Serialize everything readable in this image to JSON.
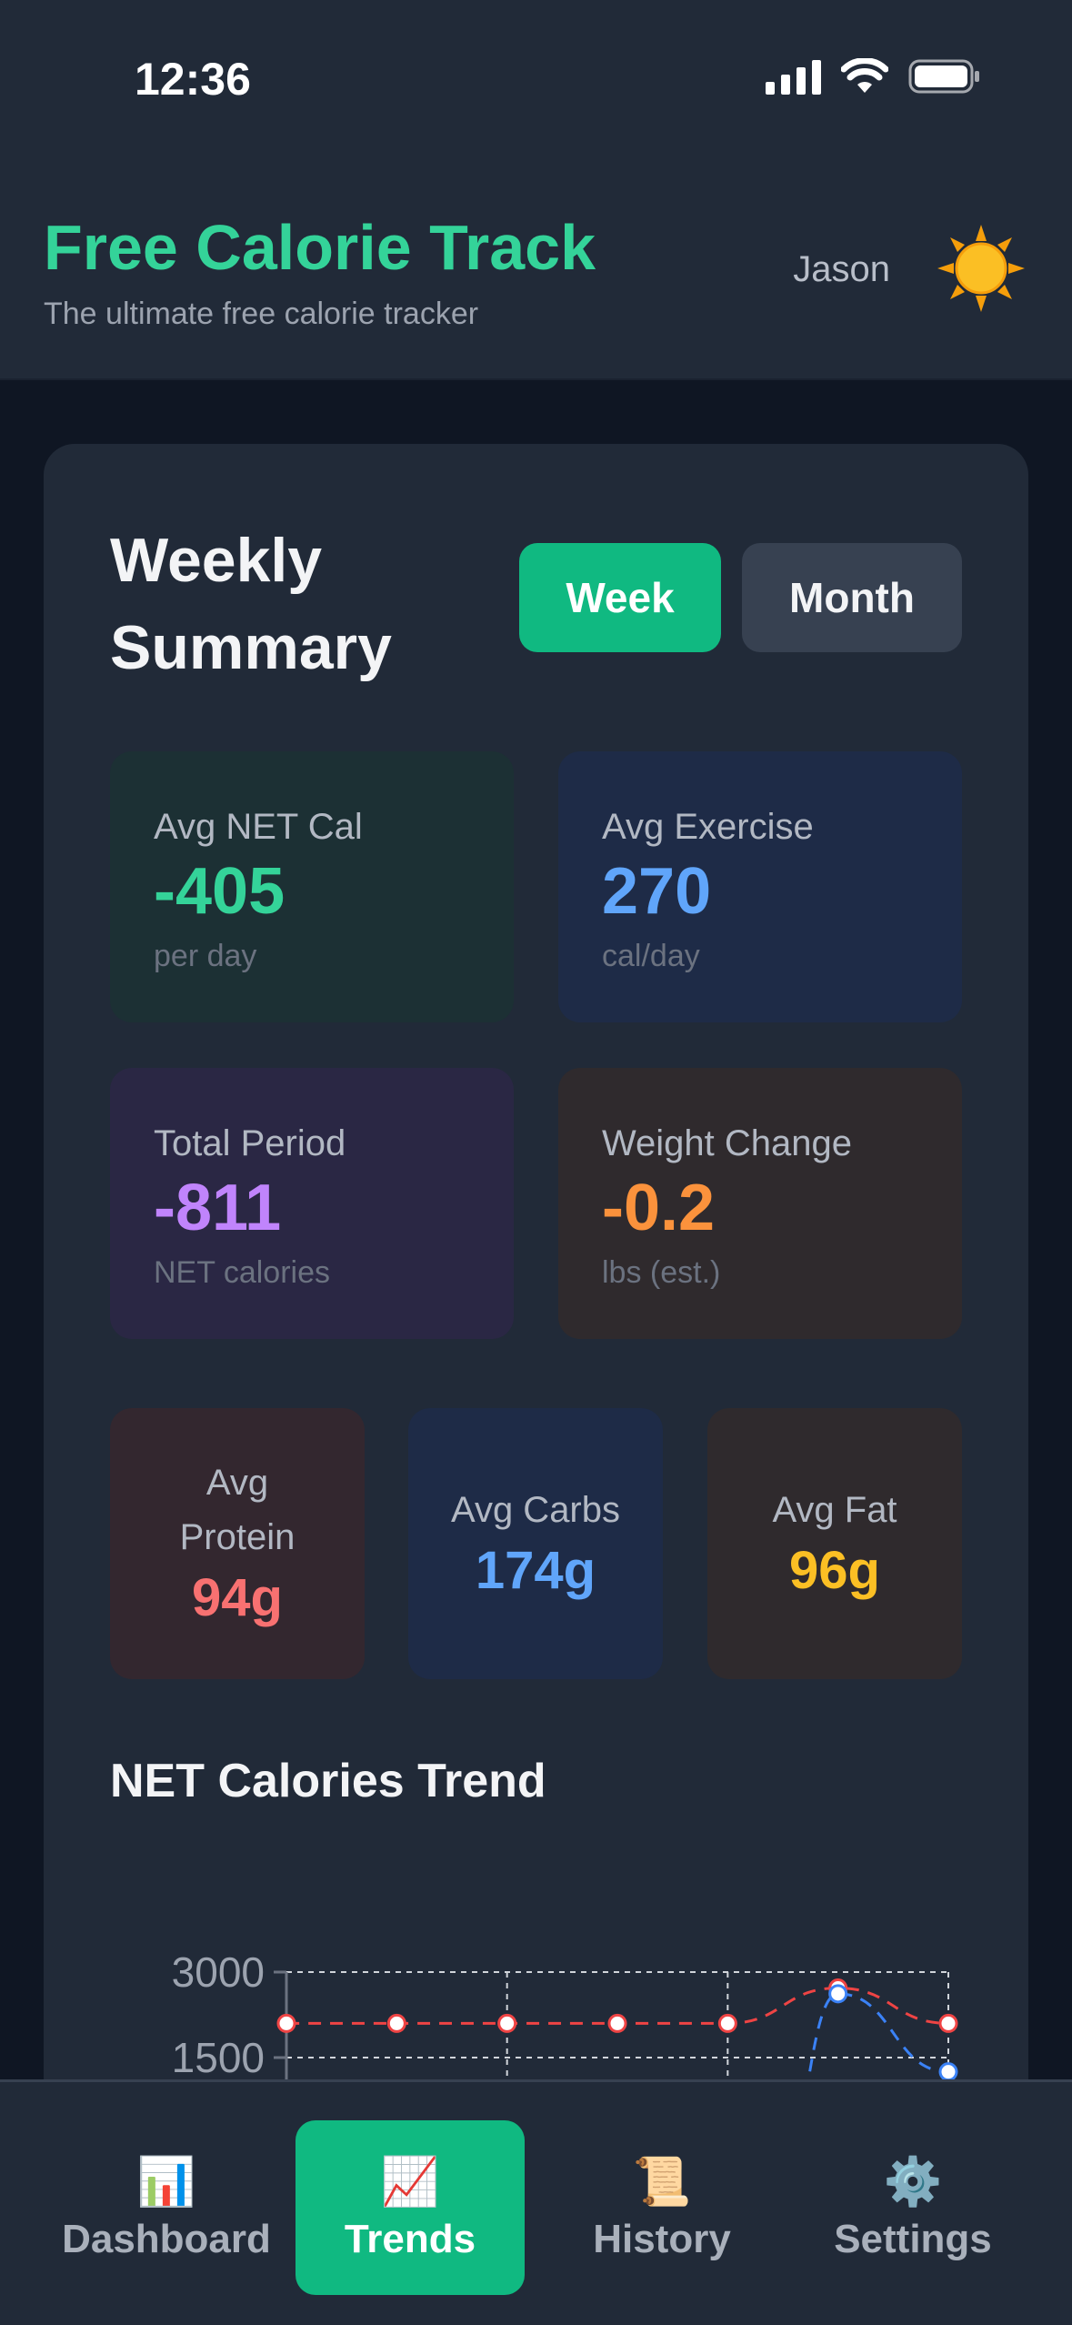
{
  "status_bar": {
    "time": "12:36"
  },
  "header": {
    "title": "Free Calorie Track",
    "subtitle": "The ultimate free calorie tracker",
    "user_name": "Jason",
    "theme_icon": "sun-icon"
  },
  "summary": {
    "title": "Weekly Summary",
    "period_buttons": {
      "week": "Week",
      "month": "Month",
      "selected": "week"
    },
    "stats": {
      "avg_net": {
        "label": "Avg NET Cal",
        "value": "-405",
        "unit": "per day",
        "color": "#34d399"
      },
      "avg_exercise": {
        "label": "Avg Exercise",
        "value": "270",
        "unit": "cal/day",
        "color": "#60a5fa"
      },
      "total_period": {
        "label": "Total Period",
        "value": "-811",
        "unit": "NET calories",
        "color": "#c084fc"
      },
      "weight_change": {
        "label": "Weight Change",
        "value": "-0.2",
        "unit": "lbs (est.)",
        "color": "#fb923c"
      }
    },
    "macros": {
      "protein": {
        "label": "Avg Protein",
        "value": "94g",
        "color": "#f87171"
      },
      "carbs": {
        "label": "Avg Carbs",
        "value": "174g",
        "color": "#60a5fa"
      },
      "fat": {
        "label": "Avg Fat",
        "value": "96g",
        "color": "#fbbf24"
      }
    }
  },
  "trend": {
    "title": "NET Calories Trend",
    "chart_data": {
      "type": "line",
      "y_ticks": [
        "3000",
        "1500"
      ],
      "ylim": [
        0,
        3000
      ],
      "grid": true,
      "x_count": 7,
      "series": [
        {
          "color": "#ef4444",
          "style": "dashed",
          "values": [
            2100,
            2100,
            2100,
            2100,
            2100,
            2720,
            2100
          ]
        },
        {
          "color": "#3b82f6",
          "style": "dashed",
          "values": [
            null,
            null,
            null,
            null,
            null,
            2620,
            1250
          ]
        }
      ]
    }
  },
  "bottom_nav": {
    "items": [
      {
        "key": "dashboard",
        "label": "Dashboard",
        "icon": "📊"
      },
      {
        "key": "trends",
        "label": "Trends",
        "icon": "📈"
      },
      {
        "key": "history",
        "label": "History",
        "icon": "📜"
      },
      {
        "key": "settings",
        "label": "Settings",
        "icon": "⚙️"
      }
    ],
    "active": "trends"
  }
}
